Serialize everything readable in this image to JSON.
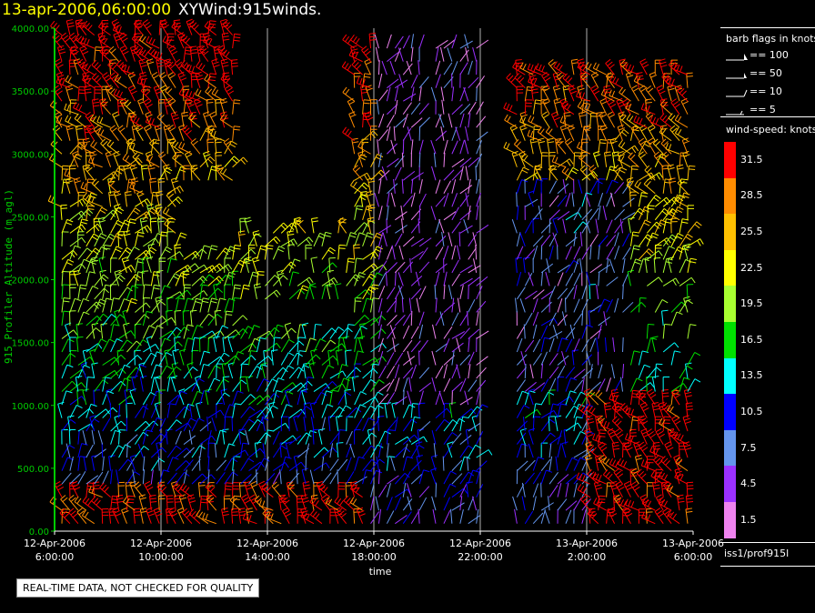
{
  "header": {
    "date_time": "13-apr-2006,06:00:00",
    "product": "XYWind:915winds."
  },
  "chart_data": {
    "type": "wind-barb time-height plot",
    "ylabel": "915 Profiler Altitude (m agl)",
    "xlabel": "time",
    "ylim": [
      0,
      4000
    ],
    "y_ticks": [
      "0.00",
      "500.00",
      "1000.00",
      "1500.00",
      "2000.00",
      "2500.00",
      "3000.00",
      "3500.00",
      "4000.00"
    ],
    "x_ticks": [
      {
        "line1": "12-Apr-2006",
        "line2": "6:00:00"
      },
      {
        "line1": "12-Apr-2006",
        "line2": "10:00:00"
      },
      {
        "line1": "12-Apr-2006",
        "line2": "14:00:00"
      },
      {
        "line1": "12-Apr-2006",
        "line2": "18:00:00"
      },
      {
        "line1": "12-Apr-2006",
        "line2": "22:00:00"
      },
      {
        "line1": "13-Apr-2006",
        "line2": "2:00:00"
      },
      {
        "line1": "13-Apr-2006",
        "line2": "6:00:00"
      }
    ],
    "colors": {
      "axis": "#00cc00",
      "tick_text": "#ffffff",
      "grid": "#b0b0b0"
    }
  },
  "legend": {
    "barb_title": "barb flags in knots",
    "barb_flags": [
      "== 100",
      "== 50",
      "== 10",
      "== 5"
    ],
    "speed_title": "wind-speed: knots",
    "speed_scale": [
      {
        "label": "31.5",
        "color": "#ff0000"
      },
      {
        "label": "28.5",
        "color": "#ff8c00"
      },
      {
        "label": "25.5",
        "color": "#ffc000"
      },
      {
        "label": "22.5",
        "color": "#ffff00"
      },
      {
        "label": "19.5",
        "color": "#a8ff30"
      },
      {
        "label": "16.5",
        "color": "#00e000"
      },
      {
        "label": "13.5",
        "color": "#00ffff"
      },
      {
        "label": "10.5",
        "color": "#0000ff"
      },
      {
        "label": "7.5",
        "color": "#6495ed"
      },
      {
        "label": "4.5",
        "color": "#9b30ff"
      },
      {
        "label": "1.5",
        "color": "#ee82ee"
      }
    ],
    "station": "iss1/prof915l"
  },
  "disclaimer": "REAL-TIME DATA, NOT CHECKED FOR QUALITY"
}
